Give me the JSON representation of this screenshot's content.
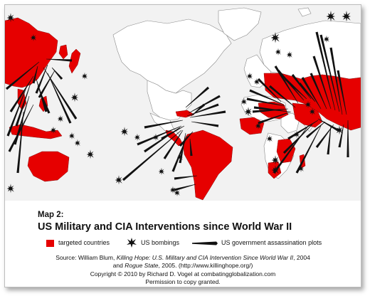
{
  "map": {
    "label": "Map 2:",
    "title": "US Military and CIA Interventions since World War II",
    "colors": {
      "ocean": "#f2f2f2",
      "land": "#ffffff",
      "targeted": "#e60000",
      "border": "#7a7a7a",
      "marker": "#111111"
    }
  },
  "legend": {
    "targeted": "targeted countries",
    "bombings": "US bombings",
    "assassinations": "US government assassination plots",
    "icons": [
      "red-square",
      "bomb-burst-icon",
      "dagger-icon"
    ]
  },
  "source": {
    "prefix": "Source:  William Blum, ",
    "book1": "Killing Hope: U.S. Military and CIA Intervention Since World War II",
    "mid": ", 2004",
    "and": "and ",
    "book2": "Rogue State",
    "suffix": ", 2005. (http://www.killinghope.org/)",
    "copyright": "Copyright  ©  2010 by Richard D. Vogel at combatingglobalization.com",
    "permission": "Permission to copy granted."
  }
}
